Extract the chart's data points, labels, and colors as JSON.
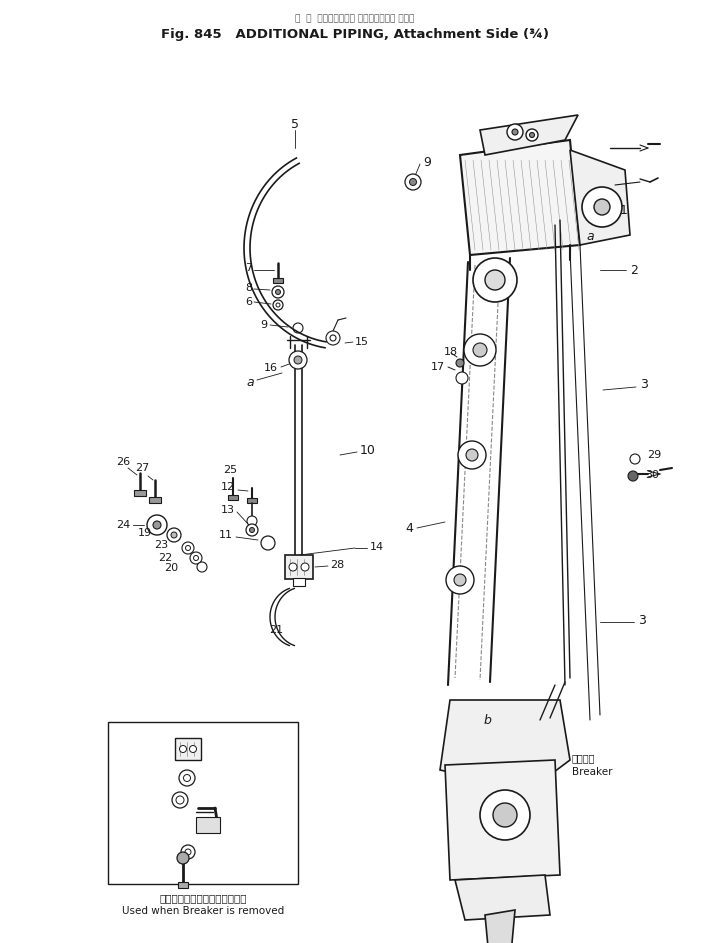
{
  "title_jp": "図  葛  パワーショベル アタッチメント サイド",
  "title_en": "Fig. 845   ADDITIONAL PIPING, Attachment Side (¾)",
  "bg_color": "#ffffff",
  "fg_color": "#1a1a1a",
  "note_ja": "ブレーカ取り外し時に使用する",
  "note_en": "Used when Breaker is removed",
  "breaker_jp": "ブレーカ",
  "breaker_en": "Breaker"
}
